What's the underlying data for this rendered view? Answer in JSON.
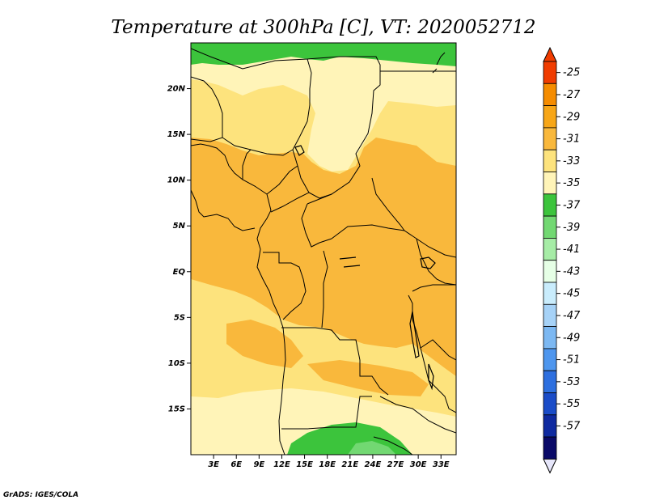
{
  "title": "Temperature at 300hPa [C], VT: 2020052712",
  "credit": "GrADS: IGES/COLA",
  "map": {
    "lon_range": [
      0,
      35
    ],
    "lat_range": [
      -20,
      25
    ],
    "lat_ticks": [
      "20N",
      "15N",
      "10N",
      "5N",
      "EQ",
      "5S",
      "10S",
      "15S"
    ],
    "lon_ticks": [
      "3E",
      "6E",
      "9E",
      "12E",
      "15E",
      "18E",
      "21E",
      "24E",
      "27E",
      "30E",
      "33E"
    ],
    "field_bands": [
      {
        "value": -37,
        "color": "#3cc43c"
      },
      {
        "value": -35,
        "color": "#fff4b8"
      },
      {
        "value": -33,
        "color": "#fde37d"
      },
      {
        "value": -31,
        "color": "#f9b83c"
      }
    ]
  },
  "colorbar": {
    "labels": [
      "-25",
      "-27",
      "-29",
      "-31",
      "-33",
      "-35",
      "-37",
      "-39",
      "-41",
      "-43",
      "-45",
      "-47",
      "-49",
      "-51",
      "-53",
      "-55",
      "-57"
    ],
    "colors": [
      "#f03c00",
      "#f58c00",
      "#f7a617",
      "#f9b83c",
      "#fde37d",
      "#fff4b8",
      "#3cc43c",
      "#72d872",
      "#a6eca6",
      "#e6ffe6",
      "#c9ecfc",
      "#a6d2f7",
      "#7cb8f2",
      "#4e96ee",
      "#2d6fdf",
      "#1a4cc8",
      "#0f2aa0",
      "#0a0a68"
    ],
    "top_arrow_color": "#f03c00",
    "bottom_arrow_color": "#e6e6fa"
  }
}
